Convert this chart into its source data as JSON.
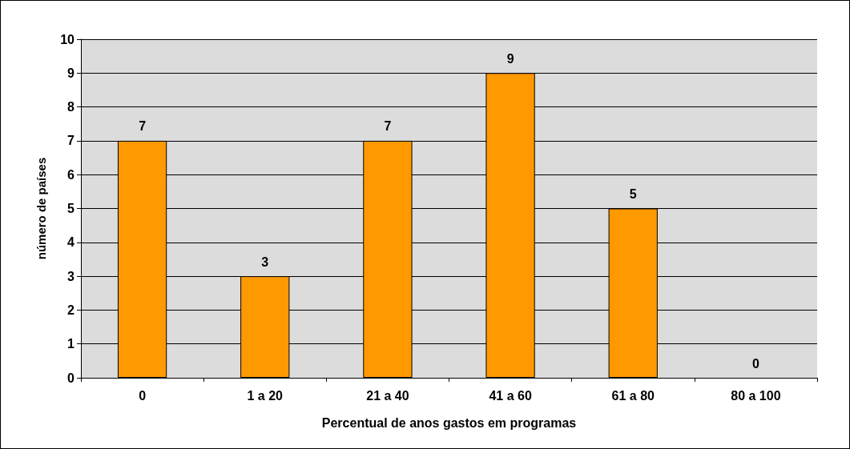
{
  "chart_data": {
    "type": "bar",
    "xlabel": "Percentual de anos gastos em programas",
    "ylabel": "número de países",
    "categories": [
      "0",
      "1 a 20",
      "21 a 40",
      "41 a 60",
      "61 a 80",
      "80 a 100"
    ],
    "values": [
      7,
      3,
      7,
      9,
      5,
      0
    ],
    "color": "#ff9900",
    "ylim": [
      0,
      10
    ],
    "yticks": [
      0,
      1,
      2,
      3,
      4,
      5,
      6,
      7,
      8,
      9,
      10
    ],
    "grid": "y",
    "data_labels": true
  }
}
